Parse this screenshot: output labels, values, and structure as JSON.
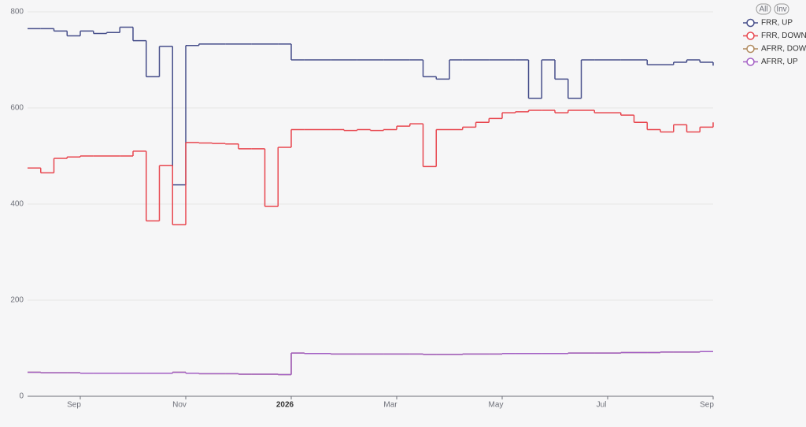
{
  "chart_data": {
    "type": "step-line",
    "categories": [
      null,
      null,
      null,
      null,
      "Sep",
      null,
      null,
      null,
      null,
      null,
      null,
      null,
      "Nov",
      null,
      null,
      null,
      null,
      null,
      null,
      null,
      "2026",
      null,
      null,
      null,
      null,
      null,
      null,
      null,
      "Mar",
      null,
      null,
      null,
      null,
      null,
      null,
      null,
      "May",
      null,
      null,
      null,
      null,
      null,
      null,
      null,
      "Jul",
      null,
      null,
      null,
      null,
      null,
      null,
      null,
      "Sep"
    ],
    "series": [
      {
        "name": "FRR, UP",
        "color": "#464e8a",
        "values": [
          765,
          765,
          760,
          750,
          760,
          755,
          757,
          768,
          740,
          665,
          728,
          440,
          730,
          733,
          733,
          733,
          733,
          733,
          733,
          733,
          700,
          700,
          700,
          700,
          700,
          700,
          700,
          700,
          700,
          700,
          665,
          660,
          700,
          700,
          700,
          700,
          700,
          700,
          620,
          700,
          660,
          620,
          700,
          700,
          700,
          700,
          700,
          690,
          690,
          695,
          700,
          695,
          688
        ]
      },
      {
        "name": "FRR, DOWN",
        "color": "#e8474f",
        "values": [
          475,
          465,
          495,
          498,
          500,
          500,
          500,
          500,
          510,
          365,
          480,
          357,
          528,
          527,
          526,
          525,
          515,
          515,
          395,
          518,
          555,
          555,
          555,
          555,
          553,
          555,
          553,
          555,
          562,
          567,
          478,
          555,
          555,
          560,
          570,
          578,
          590,
          592,
          595,
          595,
          590,
          595,
          595,
          590,
          590,
          585,
          570,
          555,
          550,
          565,
          550,
          560,
          570
        ]
      },
      {
        "name": "AFRR, DOW",
        "color": "#b08a5e",
        "values": [
          50,
          49,
          49,
          49,
          48,
          48,
          48,
          48,
          48,
          48,
          48,
          50,
          48,
          47,
          47,
          47,
          46,
          46,
          46,
          45,
          90,
          89,
          89,
          88,
          88,
          88,
          88,
          88,
          88,
          88,
          87,
          87,
          87,
          88,
          88,
          88,
          89,
          89,
          89,
          89,
          89,
          90,
          90,
          90,
          90,
          91,
          91,
          91,
          92,
          92,
          92,
          93,
          93
        ]
      },
      {
        "name": "AFRR, UP",
        "color": "#a35fc4",
        "values": [
          50,
          49,
          49,
          49,
          48,
          48,
          48,
          48,
          48,
          48,
          48,
          50,
          48,
          47,
          47,
          47,
          46,
          46,
          46,
          45,
          90,
          89,
          89,
          88,
          88,
          88,
          88,
          88,
          88,
          88,
          87,
          87,
          87,
          88,
          88,
          88,
          89,
          89,
          89,
          89,
          89,
          90,
          90,
          90,
          90,
          91,
          91,
          91,
          92,
          92,
          92,
          93,
          93
        ]
      }
    ],
    "ylim": [
      0,
      800
    ],
    "yticks": [
      0,
      200,
      400,
      600,
      800
    ],
    "grid": true,
    "legend_position": "top-right",
    "legend_buttons": [
      "All",
      "Inv"
    ]
  }
}
